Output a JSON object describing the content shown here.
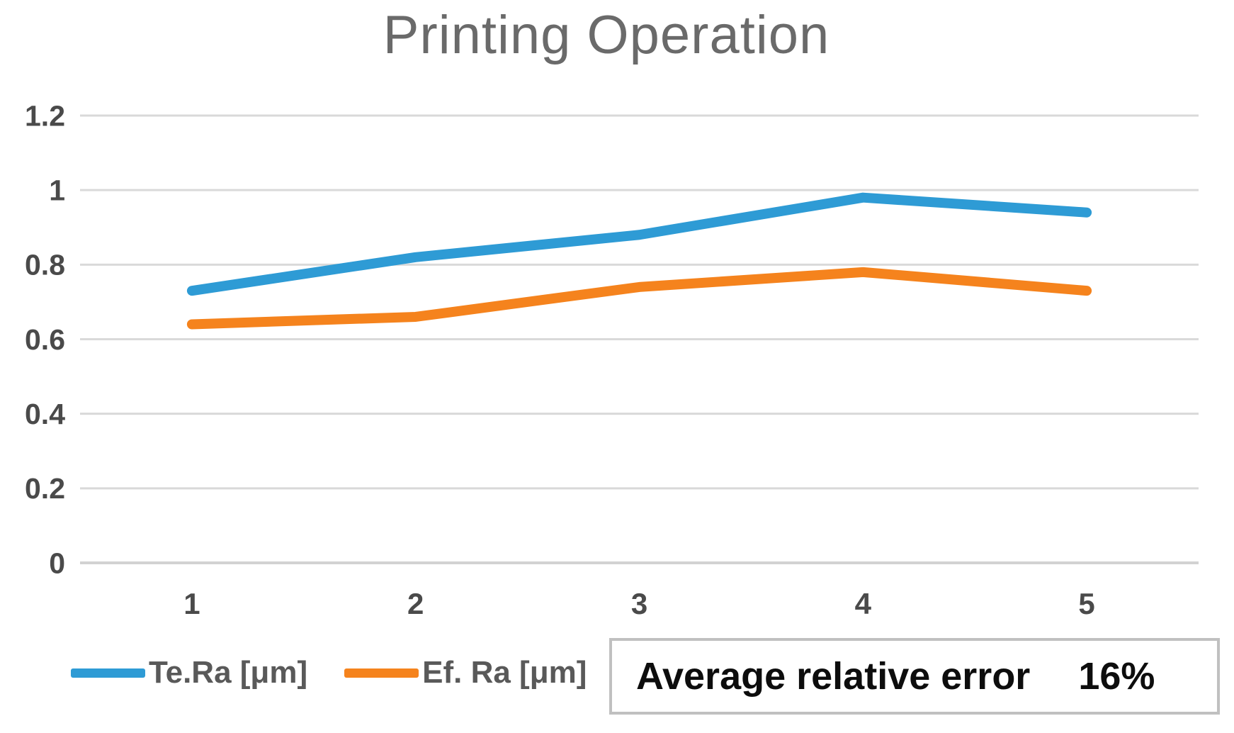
{
  "chart_data": {
    "type": "line",
    "title": "Printing Operation",
    "x": [
      "1",
      "2",
      "3",
      "4",
      "5"
    ],
    "series": [
      {
        "name": "Te.Ra [μm]",
        "color": "#2E9BD5",
        "values": [
          0.73,
          0.82,
          0.88,
          0.98,
          0.94
        ]
      },
      {
        "name": "Ef. Ra [μm]",
        "color": "#F5831D",
        "values": [
          0.64,
          0.66,
          0.74,
          0.78,
          0.73
        ]
      }
    ],
    "xlabel": "",
    "ylabel": "",
    "ylim": [
      0,
      1.2
    ],
    "y_ticks": [
      0,
      0.2,
      0.4,
      0.6,
      0.8,
      1,
      1.2
    ],
    "y_tick_labels": [
      "0",
      "0.2",
      "0.4",
      "0.6",
      "0.8",
      "1",
      "1.2"
    ],
    "grid": true,
    "gridline_color": "#D9D9D9",
    "axis_line_color": "#D2D2D2",
    "tick_label_color": "#4A4A4A",
    "title_color": "#6A6A6A",
    "legend_position": "bottom-left"
  },
  "annotation": {
    "label": "Average relative error",
    "value": "16%"
  }
}
